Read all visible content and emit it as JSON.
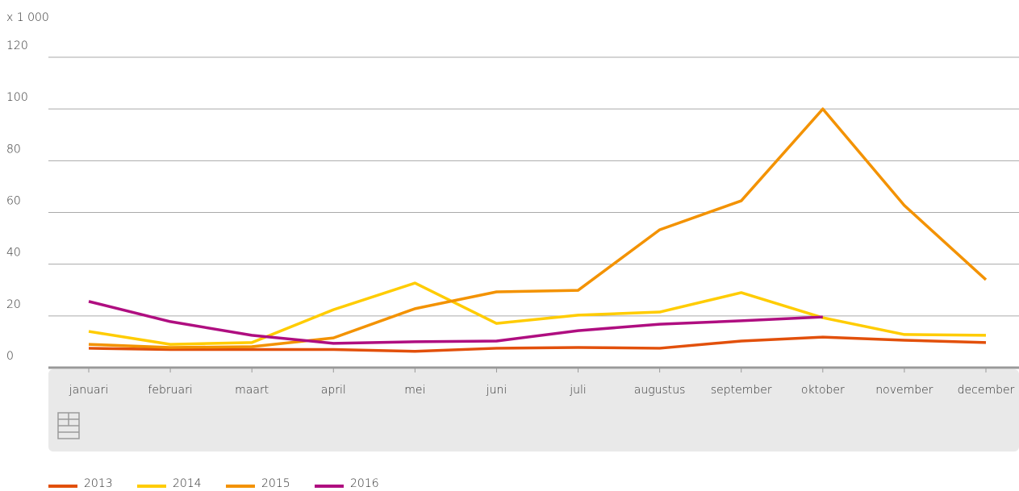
{
  "chart_data": {
    "type": "line",
    "y_unit_label": "x 1 000",
    "categories": [
      "januari",
      "februari",
      "maart",
      "april",
      "mei",
      "juni",
      "juli",
      "augustus",
      "september",
      "oktober",
      "november",
      "december"
    ],
    "series": [
      {
        "name": "2013",
        "color": "#e2500b",
        "values": [
          7.5,
          7,
          7,
          7,
          6.3,
          7.5,
          7.8,
          7.5,
          10.3,
          11.8,
          10.6,
          9.7
        ]
      },
      {
        "name": "2014",
        "color": "#ffcc00",
        "values": [
          14,
          9,
          9.7,
          22.4,
          32.7,
          17.1,
          20.3,
          21.5,
          29,
          19.3,
          12.8,
          12.5
        ]
      },
      {
        "name": "2015",
        "color": "#f39200",
        "values": [
          9,
          7.8,
          8.1,
          11.5,
          22.8,
          29.3,
          29.9,
          53.3,
          64.5,
          100,
          62.7,
          34
        ]
      },
      {
        "name": "2016",
        "color": "#af0e80",
        "values": [
          25.6,
          17.8,
          12.5,
          9.4,
          10,
          10.3,
          14.3,
          16.8,
          18.1,
          19.6,
          null,
          null
        ]
      }
    ],
    "ylim": [
      0,
      120
    ],
    "yticks": [
      0,
      20,
      40,
      60,
      80,
      100,
      120
    ],
    "grid": true,
    "legend": "bottom-left"
  }
}
